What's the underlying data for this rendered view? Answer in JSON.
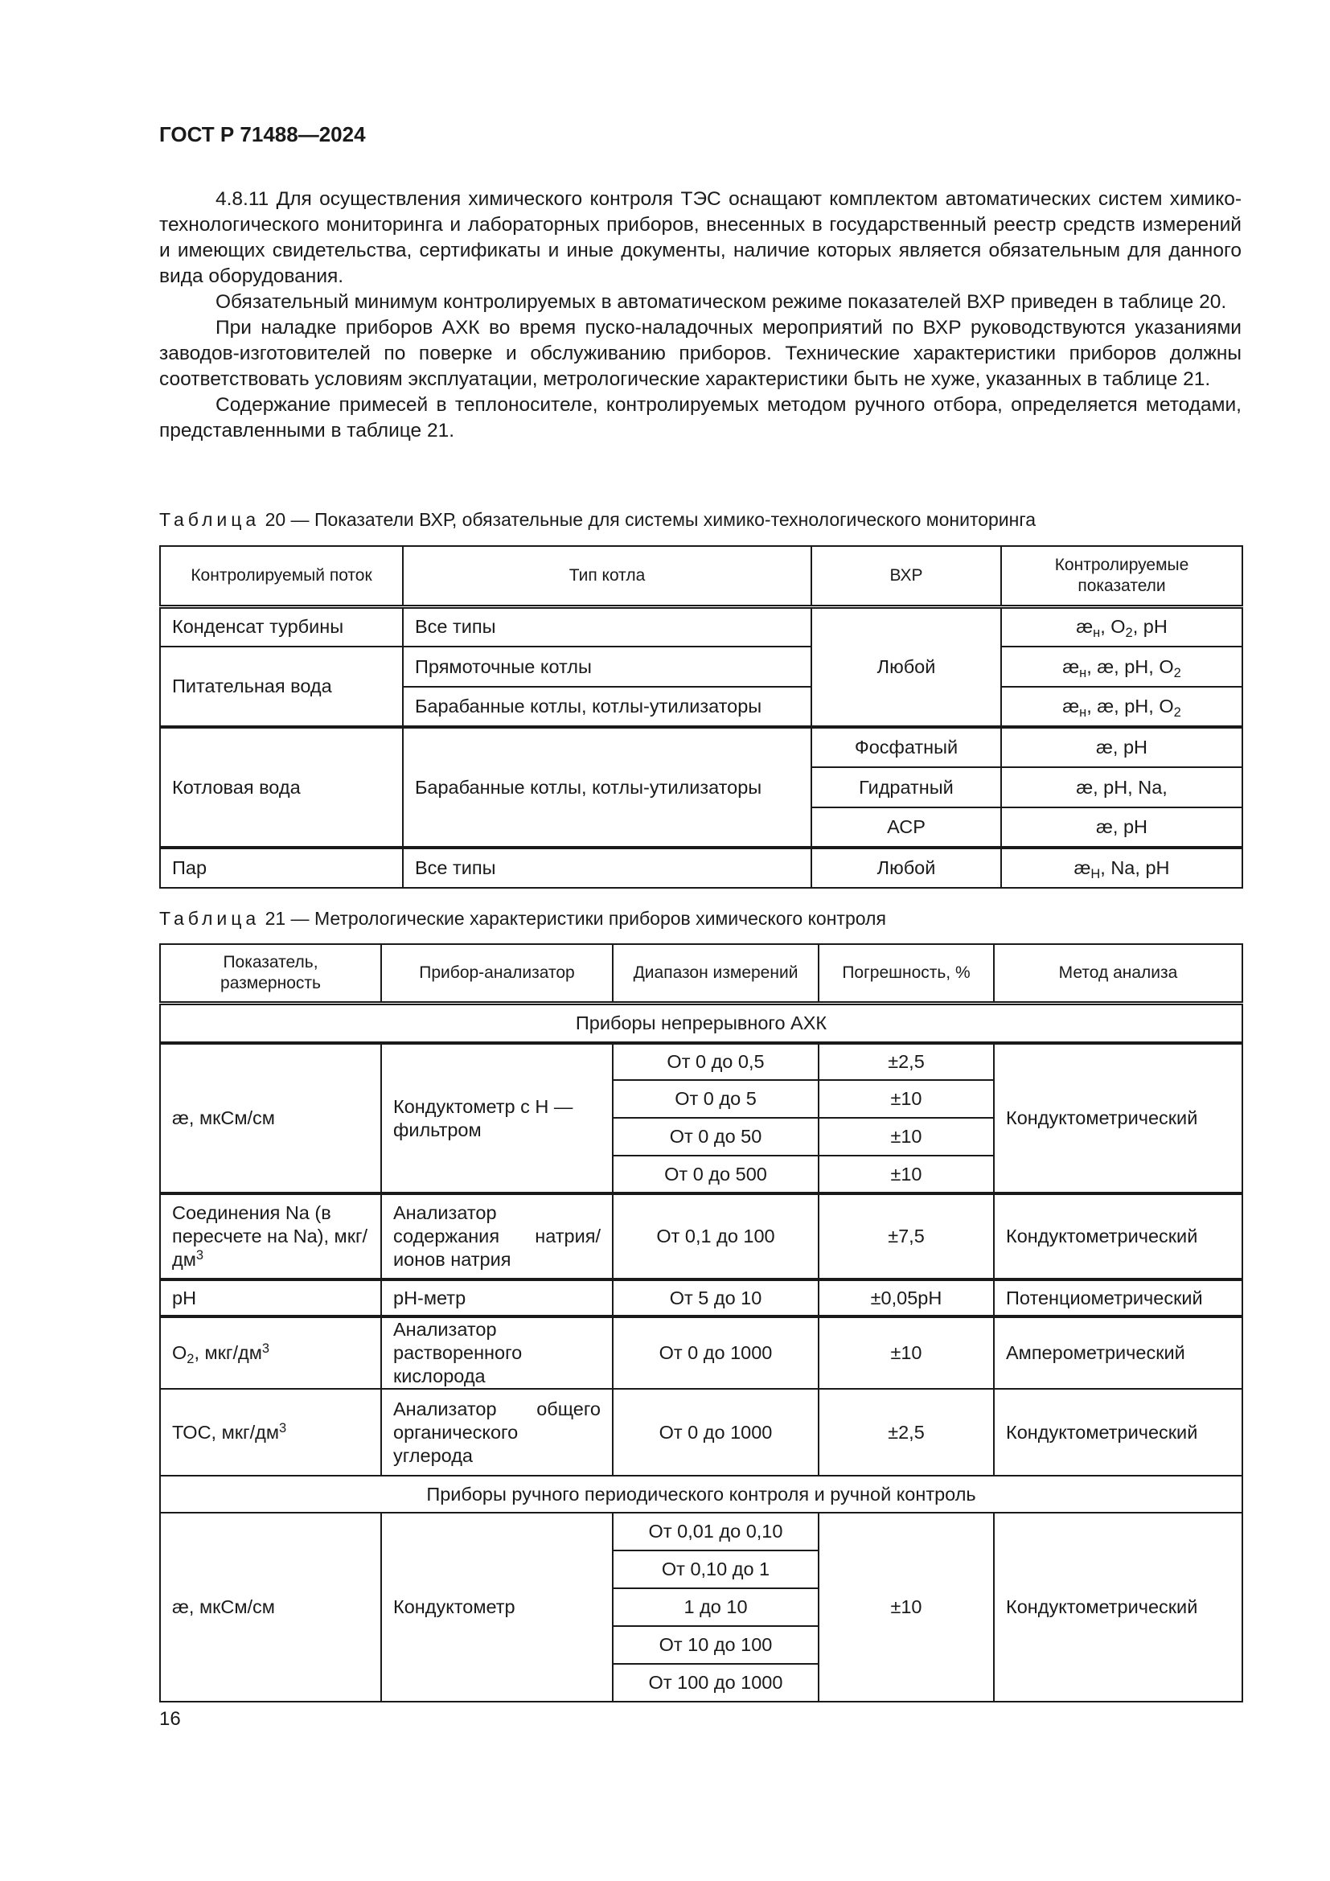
{
  "header": "ГОСТ Р 71488—2024",
  "paragraphs": [
    "4.8.11 Для осуществления химического контроля ТЭС оснащают комплектом автоматических систем химико-технологического мониторинга и лабораторных приборов, внесенных в государственный реестр средств измерений и имеющих свидетельства, сертификаты и иные документы, наличие которых является обязательным для данного вида оборудования.",
    "Обязательный минимум контролируемых в автоматическом режиме показателей ВХР приведен в таблице 20.",
    "При наладке приборов АХК во время пуско-наладочных мероприятий по ВХР руководствуются указаниями заводов-изготовителей по поверке и обслуживанию приборов. Технические характеристики приборов должны соответствовать условиям эксплуатации, метрологические характеристики быть не хуже, указанных в таблице 21.",
    "Содержание примесей в теплоносителе, контролируемых методом ручного отбора, определяется методами, представленными в таблице 21."
  ],
  "table20": {
    "caption_label": "Таблица",
    "caption_text": " 20 — Показатели ВХР, обязательные для системы химико-технологического мониторинга",
    "headers": [
      "Контролируемый поток",
      "Тип котла",
      "ВХР",
      "Контролируемые показатели"
    ],
    "cells": {
      "r1_flow": "Конденсат турбины",
      "r1_type": "Все типы",
      "vxr_any": "Любой",
      "r1_ind": [
        [
          "æ",
          ""
        ],
        [
          "н",
          "sub"
        ],
        [
          ", O",
          ""
        ],
        [
          "2",
          "sub"
        ],
        [
          ", pH",
          ""
        ]
      ],
      "r2_flow": "Питательная вода",
      "r2_type": "Прямоточные котлы",
      "r2_ind": [
        [
          "æ",
          ""
        ],
        [
          "н",
          "sub"
        ],
        [
          ", æ, pH, O",
          ""
        ],
        [
          "2",
          "sub"
        ]
      ],
      "r3_type": "Барабанные котлы, котлы-утилизаторы",
      "r3_ind": [
        [
          "æ",
          ""
        ],
        [
          "н",
          "sub"
        ],
        [
          ", æ, pH, O",
          ""
        ],
        [
          "2",
          "sub"
        ]
      ],
      "r4_flow": "Котловая вода",
      "r4_type": "Барабанные котлы, котлы-утилизаторы",
      "r4_vxr": "Фосфатный",
      "r4_ind": "æ, pH",
      "r5_vxr": "Гидратный",
      "r5_ind": "æ, pH, Na,",
      "r6_vxr": "АСР",
      "r6_ind": "æ, pH",
      "r7_flow": "Пар",
      "r7_type": "Все типы",
      "r7_vxr": "Любой",
      "r7_ind": [
        [
          "æ",
          ""
        ],
        [
          "H",
          "sub"
        ],
        [
          ", Na, pH",
          ""
        ]
      ]
    }
  },
  "table21": {
    "caption_label": "Таблица",
    "caption_text": " 21 — Метрологические характеристики приборов химического контроля",
    "headers": [
      "Показатель, размерность",
      "Прибор-анализатор",
      "Диапазон измерений",
      "Погрешность, %",
      "Метод анализа"
    ],
    "section1": "Приборы непрерывного АХК",
    "cond": {
      "ind": "æ, мкСм/см",
      "dev": "Кондуктометр с Н — фильтром",
      "method": "Кондуктометрический",
      "ranges": [
        "От 0 до 0,5",
        "От 0 до 5",
        "От 0 до 50",
        "От 0 до 500"
      ],
      "errors": [
        "±2,5",
        "±10",
        "±10",
        "±10"
      ]
    },
    "na": {
      "ind": [
        [
          "Соединения Na (в пересчете на Na), мкг/дм",
          ""
        ],
        [
          "3",
          "sup"
        ]
      ],
      "dev": "Анализатор содержания натрия/ионов натрия",
      "range": "От 0,1 до 100",
      "err": "±7,5",
      "method": "Кондуктометрический"
    },
    "ph": {
      "ind": "pH",
      "dev": "pH-метр",
      "range": "От 5 до 10",
      "err": "±0,05pH",
      "method": "Потенциометрический"
    },
    "o2": {
      "ind": [
        [
          "O",
          ""
        ],
        [
          "2",
          "sub"
        ],
        [
          ", мкг/дм",
          ""
        ],
        [
          "3",
          "sup"
        ]
      ],
      "dev": "Анализатор растворенного кислорода",
      "range": "От 0 до 1000",
      "err": "±10",
      "method": "Амперометрический"
    },
    "toc": {
      "ind": [
        [
          "ТОС, мкг/дм",
          ""
        ],
        [
          "3",
          "sup"
        ]
      ],
      "dev": "Анализатор общего органического углерода",
      "range": "От 0 до 1000",
      "err": "±2,5",
      "method": "Кондуктометрический"
    },
    "section2": "Приборы ручного периодического контроля и ручной контроль",
    "manual": {
      "ind": "æ, мкСм/см",
      "dev": "Кондуктометр",
      "err": "±10",
      "method": "Кондуктометрический",
      "ranges": [
        "От 0,01 до 0,10",
        "От 0,10 до 1",
        "1 до 10",
        "От 10 до 100",
        "От 100 до 1000"
      ]
    }
  },
  "page_number": "16"
}
